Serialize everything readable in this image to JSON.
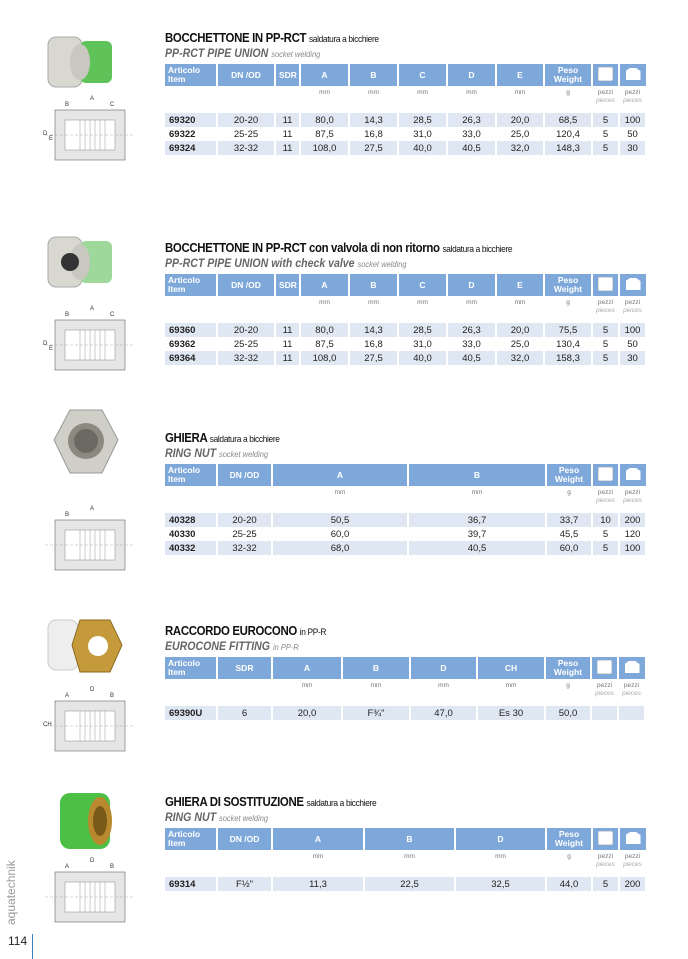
{
  "page": {
    "number": "114",
    "brand": "aquatechnik"
  },
  "colors": {
    "header_blue": "#7ea8da",
    "row_blue": "#dfe7f3",
    "accent": "#3b7fc4"
  },
  "icons": {
    "box": "single-piece-box-icon",
    "carton": "carton-box-icon"
  },
  "sections": [
    {
      "title": "BOCCHETTONE IN PP-RCT",
      "title_note": "saldatura a bicchiere",
      "subtitle": "PP-RCT PIPE UNION",
      "subtitle_note": "socket welding",
      "headers": [
        "Articolo\nItem",
        "DN /OD",
        "SDR",
        "A",
        "B",
        "C",
        "D",
        "E",
        "Peso\nWeight",
        "",
        ""
      ],
      "units": [
        "",
        "",
        "",
        "mm",
        "mm",
        "mm",
        "mm",
        "mm",
        "g",
        "pezzi",
        "pezzi"
      ],
      "units_en": [
        "",
        "",
        "",
        "",
        "",
        "",
        "",
        "",
        "",
        "pieces",
        "pieces"
      ],
      "rows": [
        [
          "69320",
          "20-20",
          "11",
          "80,0",
          "14,3",
          "28,5",
          "26,3",
          "20,0",
          "68,5",
          "5",
          "100"
        ],
        [
          "69322",
          "25-25",
          "11",
          "87,5",
          "16,8",
          "31,0",
          "33,0",
          "25,0",
          "120,4",
          "5",
          "50"
        ],
        [
          "69324",
          "32-32",
          "11",
          "108,0",
          "27,5",
          "40,0",
          "40,5",
          "32,0",
          "148,3",
          "5",
          "30"
        ]
      ],
      "diagram_labels": [
        "A",
        "B",
        "C",
        "D",
        "E"
      ]
    },
    {
      "title": "BOCCHETTONE IN PP-RCT con valvola di non ritorno",
      "title_note": "saldatura a bicchiere",
      "subtitle": "PP-RCT PIPE UNION with check valve",
      "subtitle_note": "socket welding",
      "headers": [
        "Articolo\nItem",
        "DN /OD",
        "SDR",
        "A",
        "B",
        "C",
        "D",
        "E",
        "Peso\nWeight",
        "",
        ""
      ],
      "units": [
        "",
        "",
        "",
        "mm",
        "mm",
        "mm",
        "mm",
        "mm",
        "g",
        "pezzi",
        "pezzi"
      ],
      "units_en": [
        "",
        "",
        "",
        "",
        "",
        "",
        "",
        "",
        "",
        "pieces",
        "pieces"
      ],
      "rows": [
        [
          "69360",
          "20-20",
          "11",
          "80,0",
          "14,3",
          "28,5",
          "26,3",
          "20,0",
          "75,5",
          "5",
          "100"
        ],
        [
          "69362",
          "25-25",
          "11",
          "87,5",
          "16,8",
          "31,0",
          "33,0",
          "25,0",
          "130,4",
          "5",
          "50"
        ],
        [
          "69364",
          "32-32",
          "11",
          "108,0",
          "27,5",
          "40,0",
          "40,5",
          "32,0",
          "158,3",
          "5",
          "30"
        ]
      ],
      "diagram_labels": [
        "A",
        "B",
        "C",
        "D",
        "E"
      ]
    },
    {
      "title": "GHIERA",
      "title_note": "saldatura a bicchiere",
      "subtitle": "RING NUT",
      "subtitle_note": "socket welding",
      "headers": [
        "Articolo\nItem",
        "DN /OD",
        "A",
        "B",
        "Peso\nWeight",
        "",
        ""
      ],
      "units": [
        "",
        "",
        "mm",
        "mm",
        "g",
        "pezzi",
        "pezzi"
      ],
      "units_en": [
        "",
        "",
        "",
        "",
        "",
        "pieces",
        "pieces"
      ],
      "rows": [
        [
          "40328",
          "20-20",
          "50,5",
          "36,7",
          "33,7",
          "10",
          "200"
        ],
        [
          "40330",
          "25-25",
          "60,0",
          "39,7",
          "45,5",
          "5",
          "120"
        ],
        [
          "40332",
          "32-32",
          "68,0",
          "40,5",
          "60,0",
          "5",
          "100"
        ]
      ],
      "diagram_labels": [
        "A",
        "B"
      ]
    },
    {
      "title": "RACCORDO EUROCONO",
      "title_note": "in PP-R",
      "subtitle": "EUROCONE FITTING",
      "subtitle_note": "in PP-R",
      "headers": [
        "Articolo\nItem",
        "SDR",
        "A",
        "B",
        "D",
        "CH",
        "Peso\nWeight",
        "",
        ""
      ],
      "units": [
        "",
        "",
        "mm",
        "mm",
        "mm",
        "mm",
        "g",
        "pezzi",
        "pezzi"
      ],
      "units_en": [
        "",
        "",
        "",
        "",
        "",
        "",
        "",
        "pieces",
        "pieces"
      ],
      "rows": [
        [
          "69390U",
          "6",
          "20,0",
          "F¾\"",
          "47,0",
          "Es 30",
          "50,0",
          "",
          ""
        ]
      ],
      "diagram_labels": [
        "D",
        "A",
        "B",
        "CH"
      ]
    },
    {
      "title": "GHIERA DI SOSTITUZIONE",
      "title_note": "saldatura a bicchiere",
      "subtitle": "RING NUT",
      "subtitle_note": "socket welding",
      "headers": [
        "Articolo\nItem",
        "DN /OD",
        "A",
        "B",
        "D",
        "Peso\nWeight",
        "",
        ""
      ],
      "units": [
        "",
        "",
        "mm",
        "mm",
        "mm",
        "g",
        "pezzi",
        "pezzi"
      ],
      "units_en": [
        "",
        "",
        "",
        "",
        "",
        "",
        "pieces",
        "pieces"
      ],
      "rows": [
        [
          "69314",
          "F½\"",
          "11,3",
          "22,5",
          "32,5",
          "44,0",
          "5",
          "200"
        ]
      ],
      "diagram_labels": [
        "D",
        "A",
        "B"
      ]
    }
  ]
}
